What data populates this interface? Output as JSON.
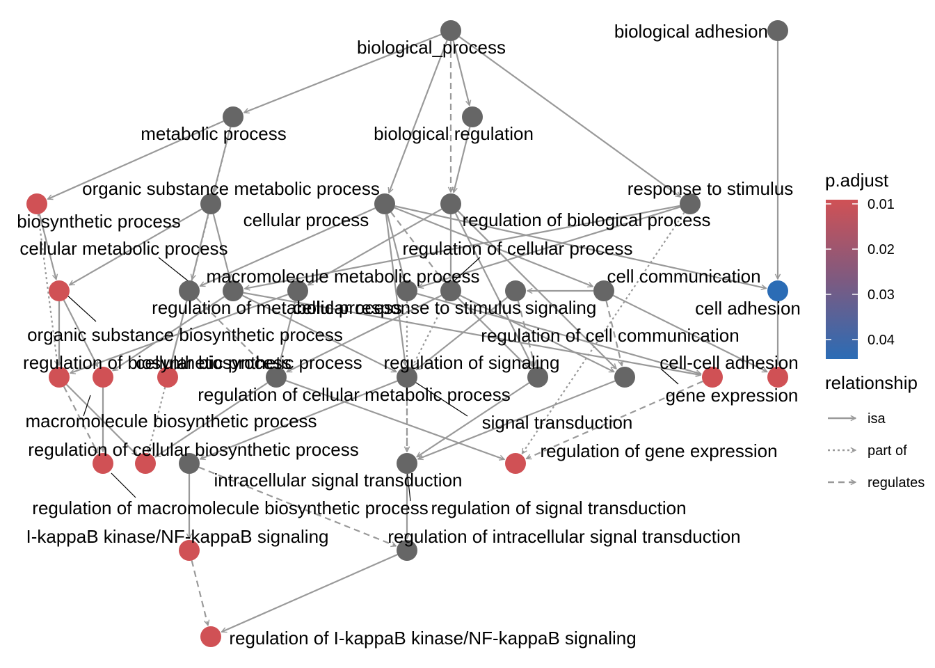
{
  "colors": {
    "edge": "#999999",
    "node_grey": "#666666",
    "node_red": "#D05155",
    "node_blue": "#2B6CB5",
    "gradient_top": "#D05155",
    "gradient_bottom": "#2B6CB5",
    "label_line": "#000000"
  },
  "legend": {
    "padjust_title": "p.adjust",
    "padjust_ticks": [
      "0.01",
      "0.02",
      "0.03",
      "0.04"
    ],
    "relationship_title": "relationship",
    "relationship_items": [
      "isa",
      "part of",
      "regulates"
    ]
  },
  "nodes": [
    {
      "label": "biological_process",
      "color": "grey"
    },
    {
      "label": "biological adhesion",
      "color": "grey"
    },
    {
      "label": "metabolic process",
      "color": "grey"
    },
    {
      "label": "biological regulation",
      "color": "grey"
    },
    {
      "label": "organic substance metabolic process",
      "color": "grey"
    },
    {
      "label": "biosynthetic process",
      "color": "red"
    },
    {
      "label": "cellular process",
      "color": "grey"
    },
    {
      "label": "regulation of biological process",
      "color": "grey"
    },
    {
      "label": "response to stimulus",
      "color": "grey"
    },
    {
      "label": "cellular metabolic process",
      "color": "grey"
    },
    {
      "label": "regulation of cellular process",
      "color": "grey"
    },
    {
      "label": "macromolecule metabolic process",
      "color": "grey"
    },
    {
      "label": "cell communication",
      "color": "grey"
    },
    {
      "label": "cell adhesion",
      "color": "blue"
    },
    {
      "label": "regulation of metabolic process",
      "color": "grey"
    },
    {
      "label": "cellular response to stimulus",
      "color": "grey"
    },
    {
      "label": "signaling",
      "color": "grey"
    },
    {
      "label": "organic substance biosynthetic process",
      "color": "red"
    },
    {
      "label": "regulation of cell communication",
      "color": "grey"
    },
    {
      "label": "regulation of biosynthetic process",
      "color": "red"
    },
    {
      "label": "cellular biosynthetic process",
      "color": "red"
    },
    {
      "label": "regulation of signaling",
      "color": "grey"
    },
    {
      "label": "cell-cell adhesion",
      "color": "red"
    },
    {
      "label": "regulation of cellular metabolic process",
      "color": "grey"
    },
    {
      "label": "gene expression",
      "color": "red"
    },
    {
      "label": "macromolecule biosynthetic process",
      "color": "red"
    },
    {
      "label": "signal transduction",
      "color": "grey"
    },
    {
      "label": "regulation of cellular biosynthetic process",
      "color": "red"
    },
    {
      "label": "regulation of gene expression",
      "color": "red"
    },
    {
      "label": "intracellular signal transduction",
      "color": "grey"
    },
    {
      "label": "regulation of macromolecule biosynthetic process",
      "color": "red"
    },
    {
      "label": "regulation of signal transduction",
      "color": "grey"
    },
    {
      "label": "I-kappaB kinase/NF-kappaB signaling",
      "color": "red"
    },
    {
      "label": "regulation of intracellular signal transduction",
      "color": "grey"
    },
    {
      "label": "regulation of I-kappaB kinase/NF-kappaB signaling",
      "color": "red"
    }
  ]
}
